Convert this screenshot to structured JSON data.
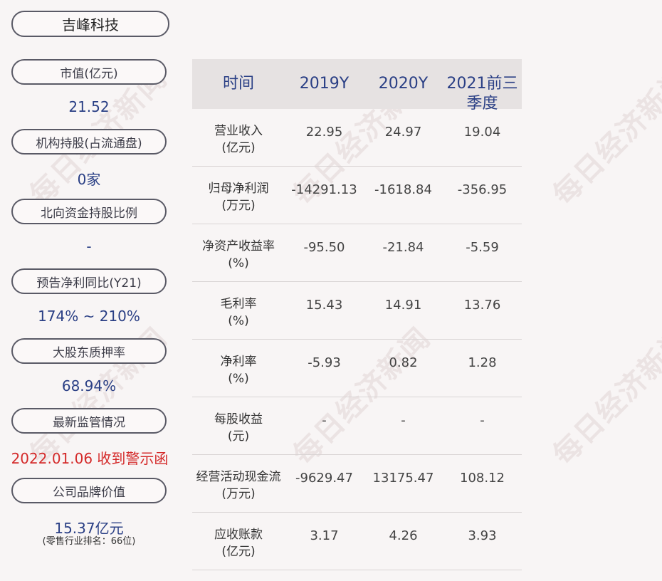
{
  "watermark": "每日经济新闻",
  "company": "吉峰科技",
  "left_panel": [
    {
      "label": "市值(亿元)",
      "value": "21.52"
    },
    {
      "label": "机构持股(占流通盘)",
      "value": "0家"
    },
    {
      "label": "北向资金持股比例",
      "value": "-"
    },
    {
      "label": "预告净利同比(Y21)",
      "value": "174% ~ 210%"
    },
    {
      "label": "大股东质押率",
      "value": "68.94%"
    },
    {
      "label": "最新监管情况",
      "value": "2022.01.06 收到警示函"
    },
    {
      "label": "公司品牌价值",
      "value": "15.37亿元",
      "note": "(零售行业排名：66位)"
    }
  ],
  "table": {
    "headers": [
      "时间",
      "2019Y",
      "2020Y",
      "2021前三季度"
    ],
    "rows": [
      {
        "label": "营业收入",
        "unit": "(亿元)",
        "values": [
          "22.95",
          "24.97",
          "19.04"
        ]
      },
      {
        "label": "归母净利润",
        "unit": "(万元)",
        "values": [
          "-14291.13",
          "-1618.84",
          "-356.95"
        ]
      },
      {
        "label": "净资产收益率",
        "unit": "(%)",
        "values": [
          "-95.50",
          "-21.84",
          "-5.59"
        ]
      },
      {
        "label": "毛利率",
        "unit": "(%)",
        "values": [
          "15.43",
          "14.91",
          "13.76"
        ]
      },
      {
        "label": "净利率",
        "unit": "(%)",
        "values": [
          "-5.93",
          "0.82",
          "1.28"
        ]
      },
      {
        "label": "每股收益",
        "unit": "(元)",
        "values": [
          "-",
          "-",
          "-"
        ]
      },
      {
        "label": "经营活动现金流",
        "unit": "(万元)",
        "values": [
          "-9629.47",
          "13175.47",
          "108.12"
        ]
      },
      {
        "label": "应收账款",
        "unit": "(亿元)",
        "values": [
          "3.17",
          "4.26",
          "3.93"
        ]
      }
    ]
  },
  "colors": {
    "value_blue": "#2a3f85",
    "alert_red": "#d42a2a",
    "header_bg": "#e6e2e2"
  }
}
